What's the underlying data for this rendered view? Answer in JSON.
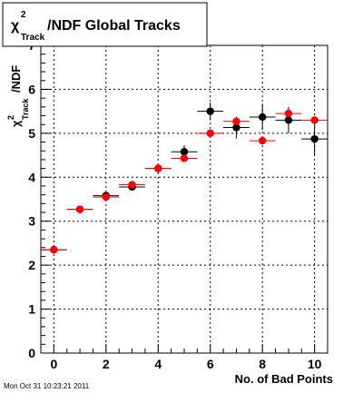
{
  "chart_data": {
    "type": "scatter",
    "title": "/NDF  Global Tracks",
    "title_symbol": "χ",
    "title_superscript": "2",
    "title_subscript": "Track",
    "xlabel": "No. of Bad Points",
    "ylabel": "/NDF",
    "ylabel_symbol": "χ",
    "ylabel_superscript": "2",
    "ylabel_subscript": "Track",
    "xlim": [
      -0.5,
      10.5
    ],
    "ylim": [
      0,
      7
    ],
    "x_ticks": [
      0,
      2,
      4,
      6,
      8,
      10
    ],
    "y_ticks": [
      0,
      1,
      2,
      3,
      4,
      5,
      6,
      7
    ],
    "grid": true,
    "x_error": 0.5,
    "series": [
      {
        "color": "#000000",
        "x": [
          0,
          1,
          2,
          3,
          4,
          5,
          6,
          7,
          8,
          9,
          10
        ],
        "y": [
          2.35,
          3.27,
          3.58,
          3.78,
          4.2,
          4.58,
          5.5,
          5.13,
          5.37,
          5.3,
          4.87
        ],
        "y_err": [
          0.02,
          0.03,
          0.05,
          0.08,
          0.1,
          0.15,
          0.2,
          0.25,
          0.3,
          0.3,
          0.35
        ]
      },
      {
        "color": "#ff0000",
        "x": [
          0,
          1,
          2,
          3,
          4,
          5,
          6,
          7,
          8,
          9,
          10
        ],
        "y": [
          2.35,
          3.27,
          3.55,
          3.83,
          4.2,
          4.43,
          5.0,
          5.27,
          4.83,
          5.45,
          5.3
        ]
      }
    ]
  },
  "timestamp": "Mon Oct 31 10:23:21 2011"
}
